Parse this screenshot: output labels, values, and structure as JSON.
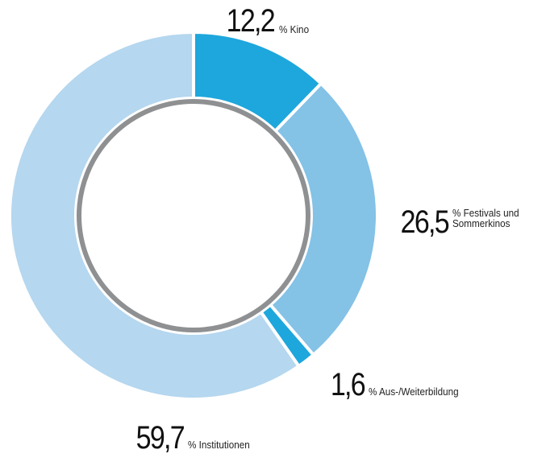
{
  "chart_data": {
    "type": "donut",
    "categories": [
      "% Kino",
      "% Festivals und Sommerkinos",
      "% Aus-/Weiterbildung",
      "% Institutionen"
    ],
    "values": [
      12.2,
      26.5,
      1.6,
      59.7
    ],
    "value_labels": [
      "12,2",
      "26,5",
      "1,6",
      "59,7"
    ],
    "colors": [
      "#1ea7dc",
      "#84c2e6",
      "#1ea7dc",
      "#b5d7ef"
    ]
  }
}
